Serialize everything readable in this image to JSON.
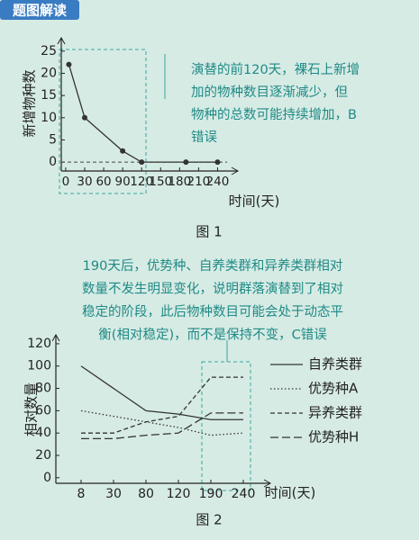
{
  "header": "题图解读",
  "chart_data": [
    {
      "type": "line",
      "caption": "图 1",
      "y_label": "新增物种数",
      "x_label": "时间(天)",
      "annotation": [
        "演替的前120天，裸石上新增",
        "加的物种数目逐渐减少，但",
        "物种的总数可能持续增加，B",
        "错误"
      ],
      "x": [
        5,
        30,
        90,
        120,
        190,
        240
      ],
      "values": [
        22,
        10,
        2.5,
        0,
        0,
        0
      ],
      "color": "#333333",
      "xlim": [
        -7,
        255
      ],
      "xticks": [
        0,
        30,
        60,
        90,
        120,
        150,
        180,
        210,
        240
      ],
      "ylim": [
        -2,
        28
      ],
      "yticks": [
        0,
        5,
        10,
        15,
        20,
        25
      ]
    },
    {
      "type": "line",
      "caption": "图 2",
      "y_label": "相对数量",
      "x_label": "时间(天)",
      "annotation": [
        "190天后，优势种、自养类群和异养类群相对",
        "数量不发生明显变化，说明群落演替到了相对",
        "稳定的阶段，此后物种数目可能会处于动态平",
        "衡(相对稳定)，而不是保持不变，C错误"
      ],
      "categories": [
        "8",
        "30",
        "80",
        "120",
        "190",
        "240"
      ],
      "ylim": [
        -5,
        128
      ],
      "yticks": [
        0,
        20,
        40,
        60,
        80,
        100,
        120
      ],
      "series": [
        {
          "name": "自养类群",
          "color": "#333333",
          "dash": "solid",
          "values": [
            100,
            80,
            60,
            57,
            52,
            52
          ]
        },
        {
          "name": "优势种A",
          "color": "#333333",
          "dash": "dotted",
          "values": [
            60,
            55,
            50,
            45,
            38,
            40
          ]
        },
        {
          "name": "异养类群",
          "color": "#333333",
          "dash": "dashed",
          "values": [
            40,
            40,
            50,
            55,
            90,
            90
          ]
        },
        {
          "name": "优势种H",
          "color": "#333333",
          "dash": "longdash",
          "values": [
            35,
            35,
            38,
            40,
            58,
            58
          ]
        }
      ]
    }
  ]
}
